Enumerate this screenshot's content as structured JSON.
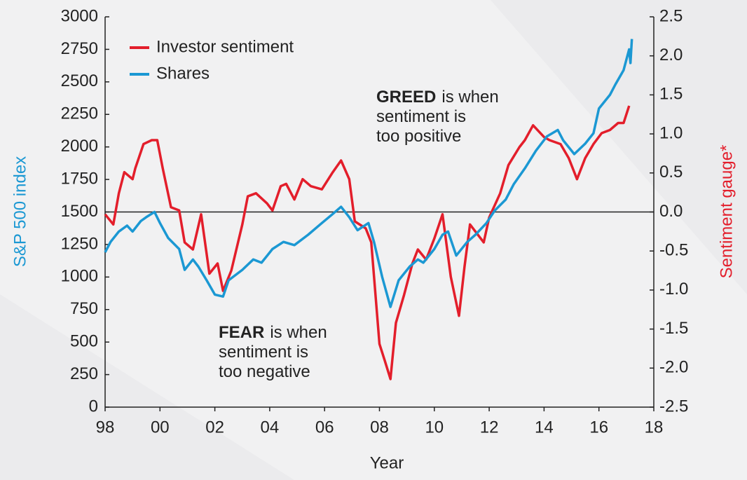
{
  "chart_data": {
    "type": "line",
    "xlabel": "Year",
    "ylabel": "S&P 500 index",
    "y2label": "Sentiment gauge*",
    "xlim": [
      1998,
      2018
    ],
    "xticks": [
      {
        "value": 1998,
        "label": "98"
      },
      {
        "value": 2000,
        "label": "00"
      },
      {
        "value": 2002,
        "label": "02"
      },
      {
        "value": 2004,
        "label": "04"
      },
      {
        "value": 2006,
        "label": "06"
      },
      {
        "value": 2008,
        "label": "08"
      },
      {
        "value": 2010,
        "label": "10"
      },
      {
        "value": 2012,
        "label": "12"
      },
      {
        "value": 2014,
        "label": "14"
      },
      {
        "value": 2016,
        "label": "16"
      },
      {
        "value": 2018,
        "label": "18"
      }
    ],
    "ylim": [
      0,
      3000
    ],
    "yticks": [
      0,
      250,
      500,
      750,
      1000,
      1250,
      1500,
      1750,
      2000,
      2250,
      2500,
      2750,
      3000
    ],
    "y2lim": [
      -2.5,
      2.5
    ],
    "y2ticks": [
      -2.5,
      {
        "value": -2,
        "label": "-2.0"
      },
      -1.5,
      {
        "value": -1,
        "label": "-1.0"
      },
      -0.5,
      {
        "value": 0,
        "label": "0.0"
      },
      0.5,
      {
        "value": 1,
        "label": "1.0"
      },
      1.5,
      {
        "value": 2,
        "label": "2.0"
      },
      2.5
    ],
    "legend": "upper left",
    "annotations": [
      {
        "bold": "GREED",
        "lines": [
          "is when",
          "sentiment is",
          "too positive"
        ]
      },
      {
        "bold": "FEAR",
        "lines": [
          "is when",
          "sentiment is",
          "too negative"
        ]
      }
    ],
    "series": [
      {
        "name": "Investor sentiment",
        "color": "#e31e2b",
        "axis": "y2",
        "x": [
          1998.0,
          1998.3,
          1998.5,
          1998.7,
          1999.0,
          1999.1,
          1999.4,
          1999.7,
          1999.9,
          2000.1,
          2000.4,
          2000.7,
          2000.9,
          2001.2,
          2001.5,
          2001.8,
          2002.1,
          2002.3,
          2002.6,
          2003.0,
          2003.2,
          2003.5,
          2003.9,
          2004.1,
          2004.4,
          2004.6,
          2004.9,
          2005.2,
          2005.5,
          2005.9,
          2006.3,
          2006.6,
          2006.9,
          2007.1,
          2007.5,
          2007.7,
          2008.0,
          2008.2,
          2008.4,
          2008.6,
          2008.9,
          2009.2,
          2009.4,
          2009.7,
          2010.0,
          2010.3,
          2010.6,
          2010.9,
          2011.1,
          2011.3,
          2011.8,
          2012.0,
          2012.4,
          2012.7,
          2013.1,
          2013.3,
          2013.6,
          2014.0,
          2014.2,
          2014.6,
          2014.9,
          2015.2,
          2015.5,
          2015.8,
          2016.1,
          2016.4,
          2016.7,
          2016.9,
          2017.1
        ],
        "values": [
          -0.03,
          -0.16,
          0.24,
          0.51,
          0.42,
          0.56,
          0.87,
          0.92,
          0.92,
          0.56,
          0.06,
          0.02,
          -0.39,
          -0.48,
          -0.03,
          -0.79,
          -0.66,
          -1.01,
          -0.75,
          -0.16,
          0.2,
          0.24,
          0.11,
          0.02,
          0.33,
          0.36,
          0.16,
          0.42,
          0.33,
          0.29,
          0.51,
          0.66,
          0.42,
          -0.12,
          -0.21,
          -0.39,
          -1.69,
          -1.91,
          -2.14,
          -1.42,
          -1.06,
          -0.66,
          -0.48,
          -0.61,
          -0.34,
          -0.03,
          -0.83,
          -1.33,
          -0.7,
          -0.16,
          -0.39,
          -0.07,
          0.24,
          0.6,
          0.83,
          0.92,
          1.11,
          0.96,
          0.92,
          0.87,
          0.69,
          0.42,
          0.69,
          0.87,
          1.01,
          1.05,
          1.14,
          1.14,
          1.36
        ]
      },
      {
        "name": "Shares",
        "color": "#1b98d3",
        "axis": "y",
        "x": [
          1998.0,
          1998.2,
          1998.5,
          1998.8,
          1999.0,
          1999.3,
          1999.5,
          1999.8,
          2000.0,
          2000.3,
          2000.7,
          2000.9,
          2001.2,
          2001.4,
          2001.7,
          2002.0,
          2002.3,
          2002.5,
          2003.0,
          2003.4,
          2003.7,
          2004.1,
          2004.5,
          2004.9,
          2005.4,
          2005.9,
          2006.3,
          2006.6,
          2006.9,
          2007.2,
          2007.6,
          2007.8,
          2008.1,
          2008.4,
          2008.7,
          2009.1,
          2009.4,
          2009.6,
          2010.0,
          2010.3,
          2010.5,
          2010.8,
          2011.2,
          2011.5,
          2011.9,
          2012.2,
          2012.6,
          2012.9,
          2013.3,
          2013.7,
          2014.1,
          2014.5,
          2014.7,
          2015.1,
          2015.5,
          2015.8,
          2016.0,
          2016.4,
          2016.6,
          2016.9,
          2017.1,
          2017.15,
          2017.2
        ],
        "values": [
          1190,
          1270,
          1350,
          1395,
          1350,
          1430,
          1460,
          1500,
          1415,
          1300,
          1215,
          1055,
          1135,
          1080,
          975,
          865,
          850,
          975,
          1055,
          1135,
          1110,
          1215,
          1270,
          1245,
          1325,
          1415,
          1485,
          1540,
          1460,
          1360,
          1415,
          1270,
          1000,
          770,
          975,
          1080,
          1135,
          1110,
          1215,
          1325,
          1350,
          1165,
          1270,
          1325,
          1415,
          1510,
          1595,
          1715,
          1835,
          1970,
          2080,
          2130,
          2050,
          1945,
          2025,
          2105,
          2295,
          2400,
          2480,
          2590,
          2750,
          2645,
          2830
        ]
      }
    ]
  }
}
